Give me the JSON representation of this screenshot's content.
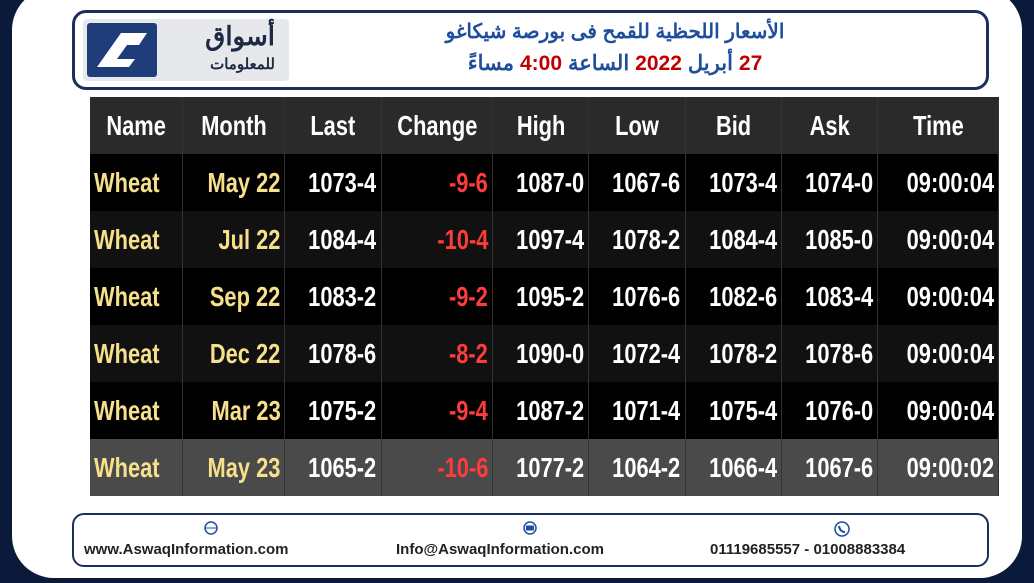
{
  "header": {
    "logo": {
      "name": "أسواق",
      "subtitle": "للمعلومات"
    },
    "title": "الأسعار اللحظية للقمح فى بورصة شيكاغو",
    "subtitle_parts": [
      {
        "text": "27",
        "color": "#c00000"
      },
      {
        "text": "أبريل",
        "color": "#1f4e9c"
      },
      {
        "text": "2022",
        "color": "#c00000"
      },
      {
        "text": "الساعة",
        "color": "#1f4e9c"
      },
      {
        "text": "4:00",
        "color": "#c00000"
      },
      {
        "text": "مساءً",
        "color": "#1f4e9c"
      }
    ]
  },
  "table": {
    "columns": [
      "Name",
      "Month",
      "Last",
      "Change",
      "High",
      "Low",
      "Bid",
      "Ask",
      "Time"
    ],
    "rows": [
      [
        "Wheat",
        "May 22",
        "1073-4",
        "-9-6",
        "1087-0",
        "1067-6",
        "1073-4",
        "1074-0",
        "09:00:04"
      ],
      [
        "Wheat",
        "Jul 22",
        "1084-4",
        "-10-4",
        "1097-4",
        "1078-2",
        "1084-4",
        "1085-0",
        "09:00:04"
      ],
      [
        "Wheat",
        "Sep 22",
        "1083-2",
        "-9-2",
        "1095-2",
        "1076-6",
        "1082-6",
        "1083-4",
        "09:00:04"
      ],
      [
        "Wheat",
        "Dec 22",
        "1078-6",
        "-8-2",
        "1090-0",
        "1072-4",
        "1078-2",
        "1078-6",
        "09:00:04"
      ],
      [
        "Wheat",
        "Mar 23",
        "1075-2",
        "-9-4",
        "1087-2",
        "1071-4",
        "1075-4",
        "1076-0",
        "09:00:04"
      ],
      [
        "Wheat",
        "May 23",
        "1065-2",
        "-10-6",
        "1077-2",
        "1064-2",
        "1066-4",
        "1067-6",
        "09:00:02"
      ]
    ]
  },
  "footer": {
    "website": "www.AswaqInformation.com",
    "email": "Info@AswaqInformation.com",
    "phone": "01119685557 - 01008883384"
  }
}
